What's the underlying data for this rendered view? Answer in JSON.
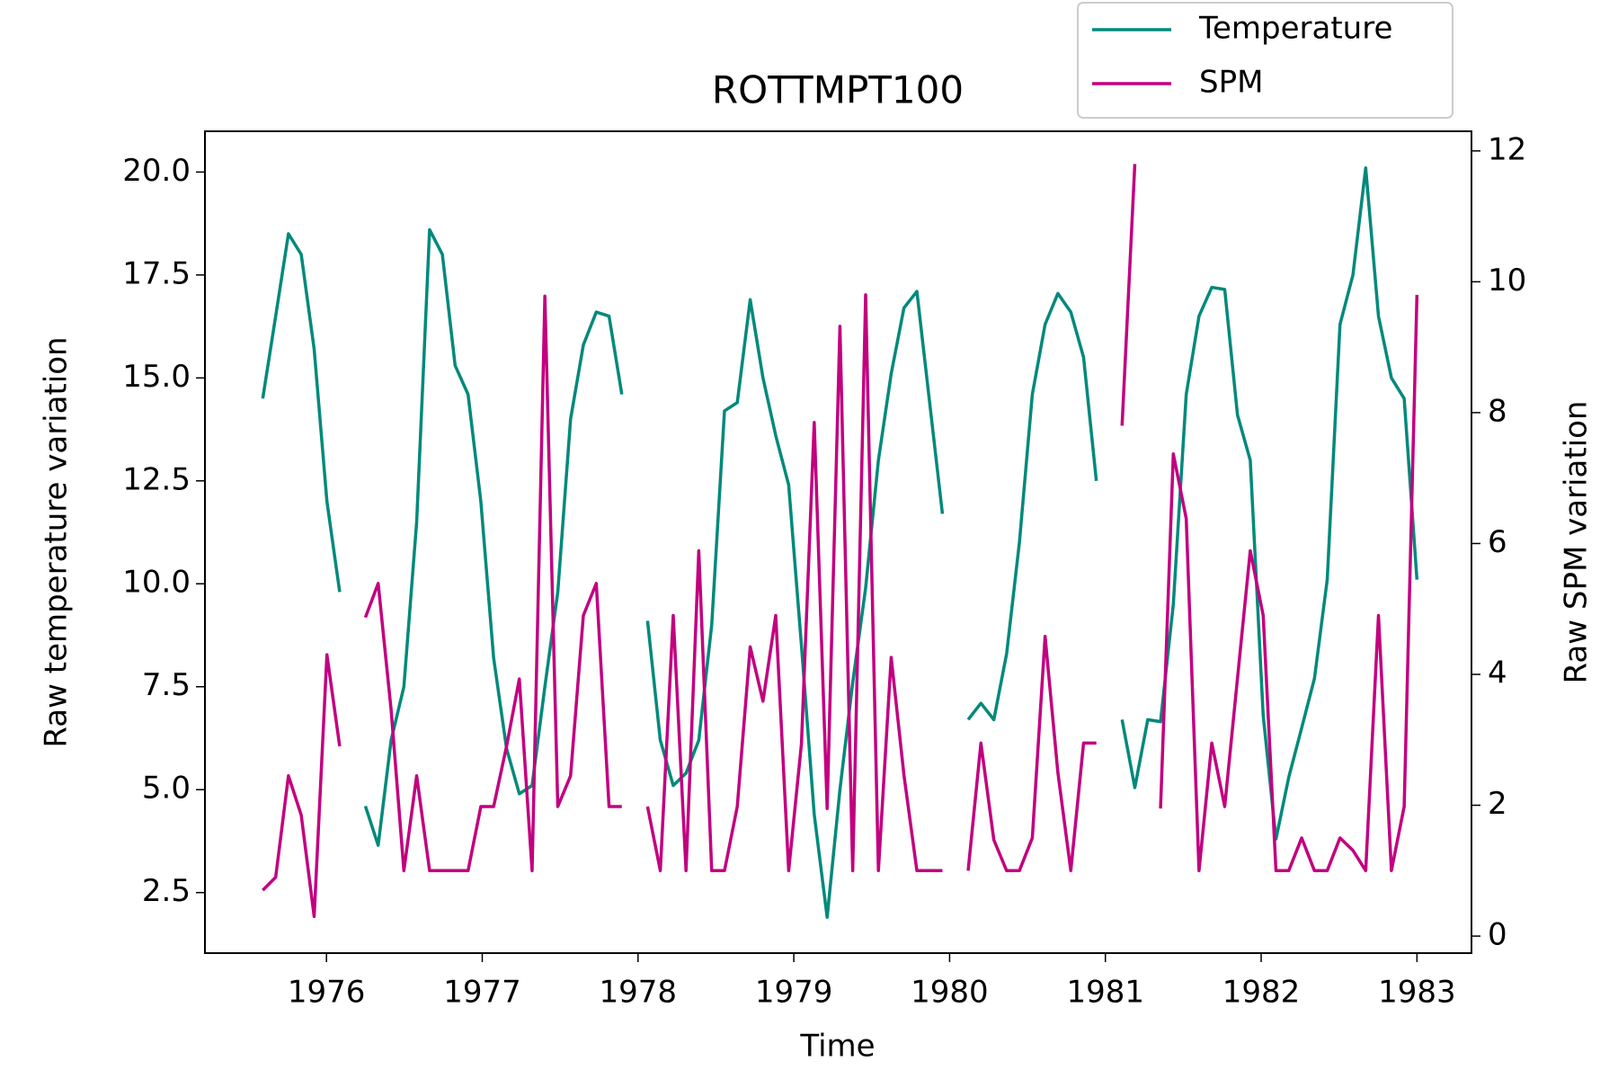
{
  "chart_data": {
    "type": "line",
    "title": "ROTTMPT100",
    "xlabel": "Time",
    "ylabel": "Raw temperature variation",
    "y2label": "Raw SPM variation",
    "x": [
      1975.591,
      1975.674,
      1975.756,
      1975.838,
      1975.921,
      1976.003,
      1976.085,
      1976.168,
      1976.25,
      1976.332,
      1976.415,
      1976.497,
      1976.579,
      1976.662,
      1976.744,
      1976.826,
      1976.909,
      1976.991,
      1977.073,
      1977.156,
      1977.238,
      1977.32,
      1977.402,
      1977.485,
      1977.567,
      1977.649,
      1977.732,
      1977.814,
      1977.896,
      1977.979,
      1978.061,
      1978.143,
      1978.226,
      1978.308,
      1978.39,
      1978.473,
      1978.555,
      1978.637,
      1978.72,
      1978.802,
      1978.884,
      1978.967,
      1979.049,
      1979.131,
      1979.214,
      1979.296,
      1979.378,
      1979.461,
      1979.543,
      1979.625,
      1979.707,
      1979.79,
      1979.872,
      1979.954,
      1980.037,
      1980.119,
      1980.201,
      1980.284,
      1980.366,
      1980.448,
      1980.531,
      1980.613,
      1980.695,
      1980.778,
      1980.86,
      1980.942,
      1981.025,
      1981.107,
      1981.189,
      1981.272,
      1981.354,
      1981.436,
      1981.519,
      1981.601,
      1981.683,
      1981.766,
      1981.848,
      1981.93,
      1982.013,
      1982.095,
      1982.177,
      1982.26,
      1982.342,
      1982.424,
      1982.506,
      1982.589,
      1982.671,
      1982.753,
      1982.836,
      1982.918,
      1983.0
    ],
    "series": [
      {
        "name": "Temperature",
        "color": "#00897b",
        "axis": "y",
        "values": [
          14.5,
          16.5,
          18.5,
          18.0,
          15.7,
          12.0,
          9.8,
          null,
          4.6,
          3.65,
          6.2,
          7.5,
          11.5,
          18.6,
          18.0,
          15.3,
          14.6,
          12.0,
          8.2,
          6.0,
          4.9,
          5.1,
          7.5,
          9.8,
          14.0,
          15.8,
          16.6,
          16.5,
          14.6,
          null,
          9.1,
          6.2,
          5.1,
          5.4,
          6.2,
          9.0,
          14.2,
          14.4,
          16.9,
          15.0,
          13.6,
          12.4,
          8.5,
          4.4,
          1.9,
          5.0,
          7.6,
          9.9,
          13.0,
          15.1,
          16.7,
          17.1,
          14.4,
          11.7,
          null,
          6.7,
          7.1,
          6.7,
          8.3,
          11.0,
          14.6,
          16.3,
          17.05,
          16.6,
          15.5,
          12.5,
          null,
          6.7,
          5.05,
          6.7,
          6.65,
          9.5,
          14.6,
          16.5,
          17.2,
          17.15,
          14.1,
          13.0,
          6.8,
          3.8,
          5.3,
          6.5,
          7.7,
          10.1,
          16.3,
          17.5,
          20.1,
          16.5,
          15.0,
          14.5,
          10.1
        ]
      },
      {
        "name": "SPM",
        "color": "#c2007f",
        "axis": "y2",
        "values": [
          0.7,
          0.9,
          2.45,
          1.85,
          0.3,
          4.3,
          2.9,
          null,
          4.87,
          5.39,
          3.46,
          1.0,
          2.45,
          1.0,
          1.0,
          1.0,
          1.0,
          1.98,
          1.98,
          2.9,
          3.93,
          1.0,
          9.78,
          1.98,
          2.45,
          4.9,
          5.39,
          1.98,
          1.98,
          null,
          1.98,
          1.0,
          4.9,
          1.0,
          5.89,
          1.0,
          1.0,
          1.98,
          4.42,
          3.59,
          4.9,
          1.0,
          2.94,
          7.85,
          1.95,
          9.32,
          1.0,
          9.8,
          1.0,
          4.26,
          2.46,
          1.0,
          1.0,
          1.0,
          null,
          1.0,
          2.95,
          1.47,
          1.0,
          1.0,
          1.5,
          4.58,
          2.5,
          1.0,
          2.95,
          2.95,
          null,
          7.8,
          11.8,
          null,
          1.95,
          7.37,
          6.38,
          1.0,
          2.95,
          1.98,
          3.94,
          5.89,
          4.9,
          1.0,
          1.0,
          1.5,
          1.0,
          1.0,
          1.5,
          1.31,
          1.0,
          4.9,
          1.0,
          1.98,
          9.8
        ]
      }
    ],
    "xlim": [
      1975.22,
      1983.35
    ],
    "xticks": [
      1976,
      1977,
      1978,
      1979,
      1980,
      1981,
      1982,
      1983
    ],
    "ylim": [
      1.03,
      20.99
    ],
    "yticks": [
      2.5,
      {
        "value": 5,
        "label": "5.0"
      },
      7.5,
      {
        "value": 10,
        "label": "10.0"
      },
      12.5,
      {
        "value": 15,
        "label": "15.0"
      },
      17.5,
      {
        "value": 20,
        "label": "20.0"
      }
    ],
    "y2lim": [
      -0.26,
      12.3
    ],
    "y2ticks": [
      0,
      2,
      4,
      6,
      8,
      10,
      12
    ],
    "grid": false,
    "legend": "upper right"
  }
}
